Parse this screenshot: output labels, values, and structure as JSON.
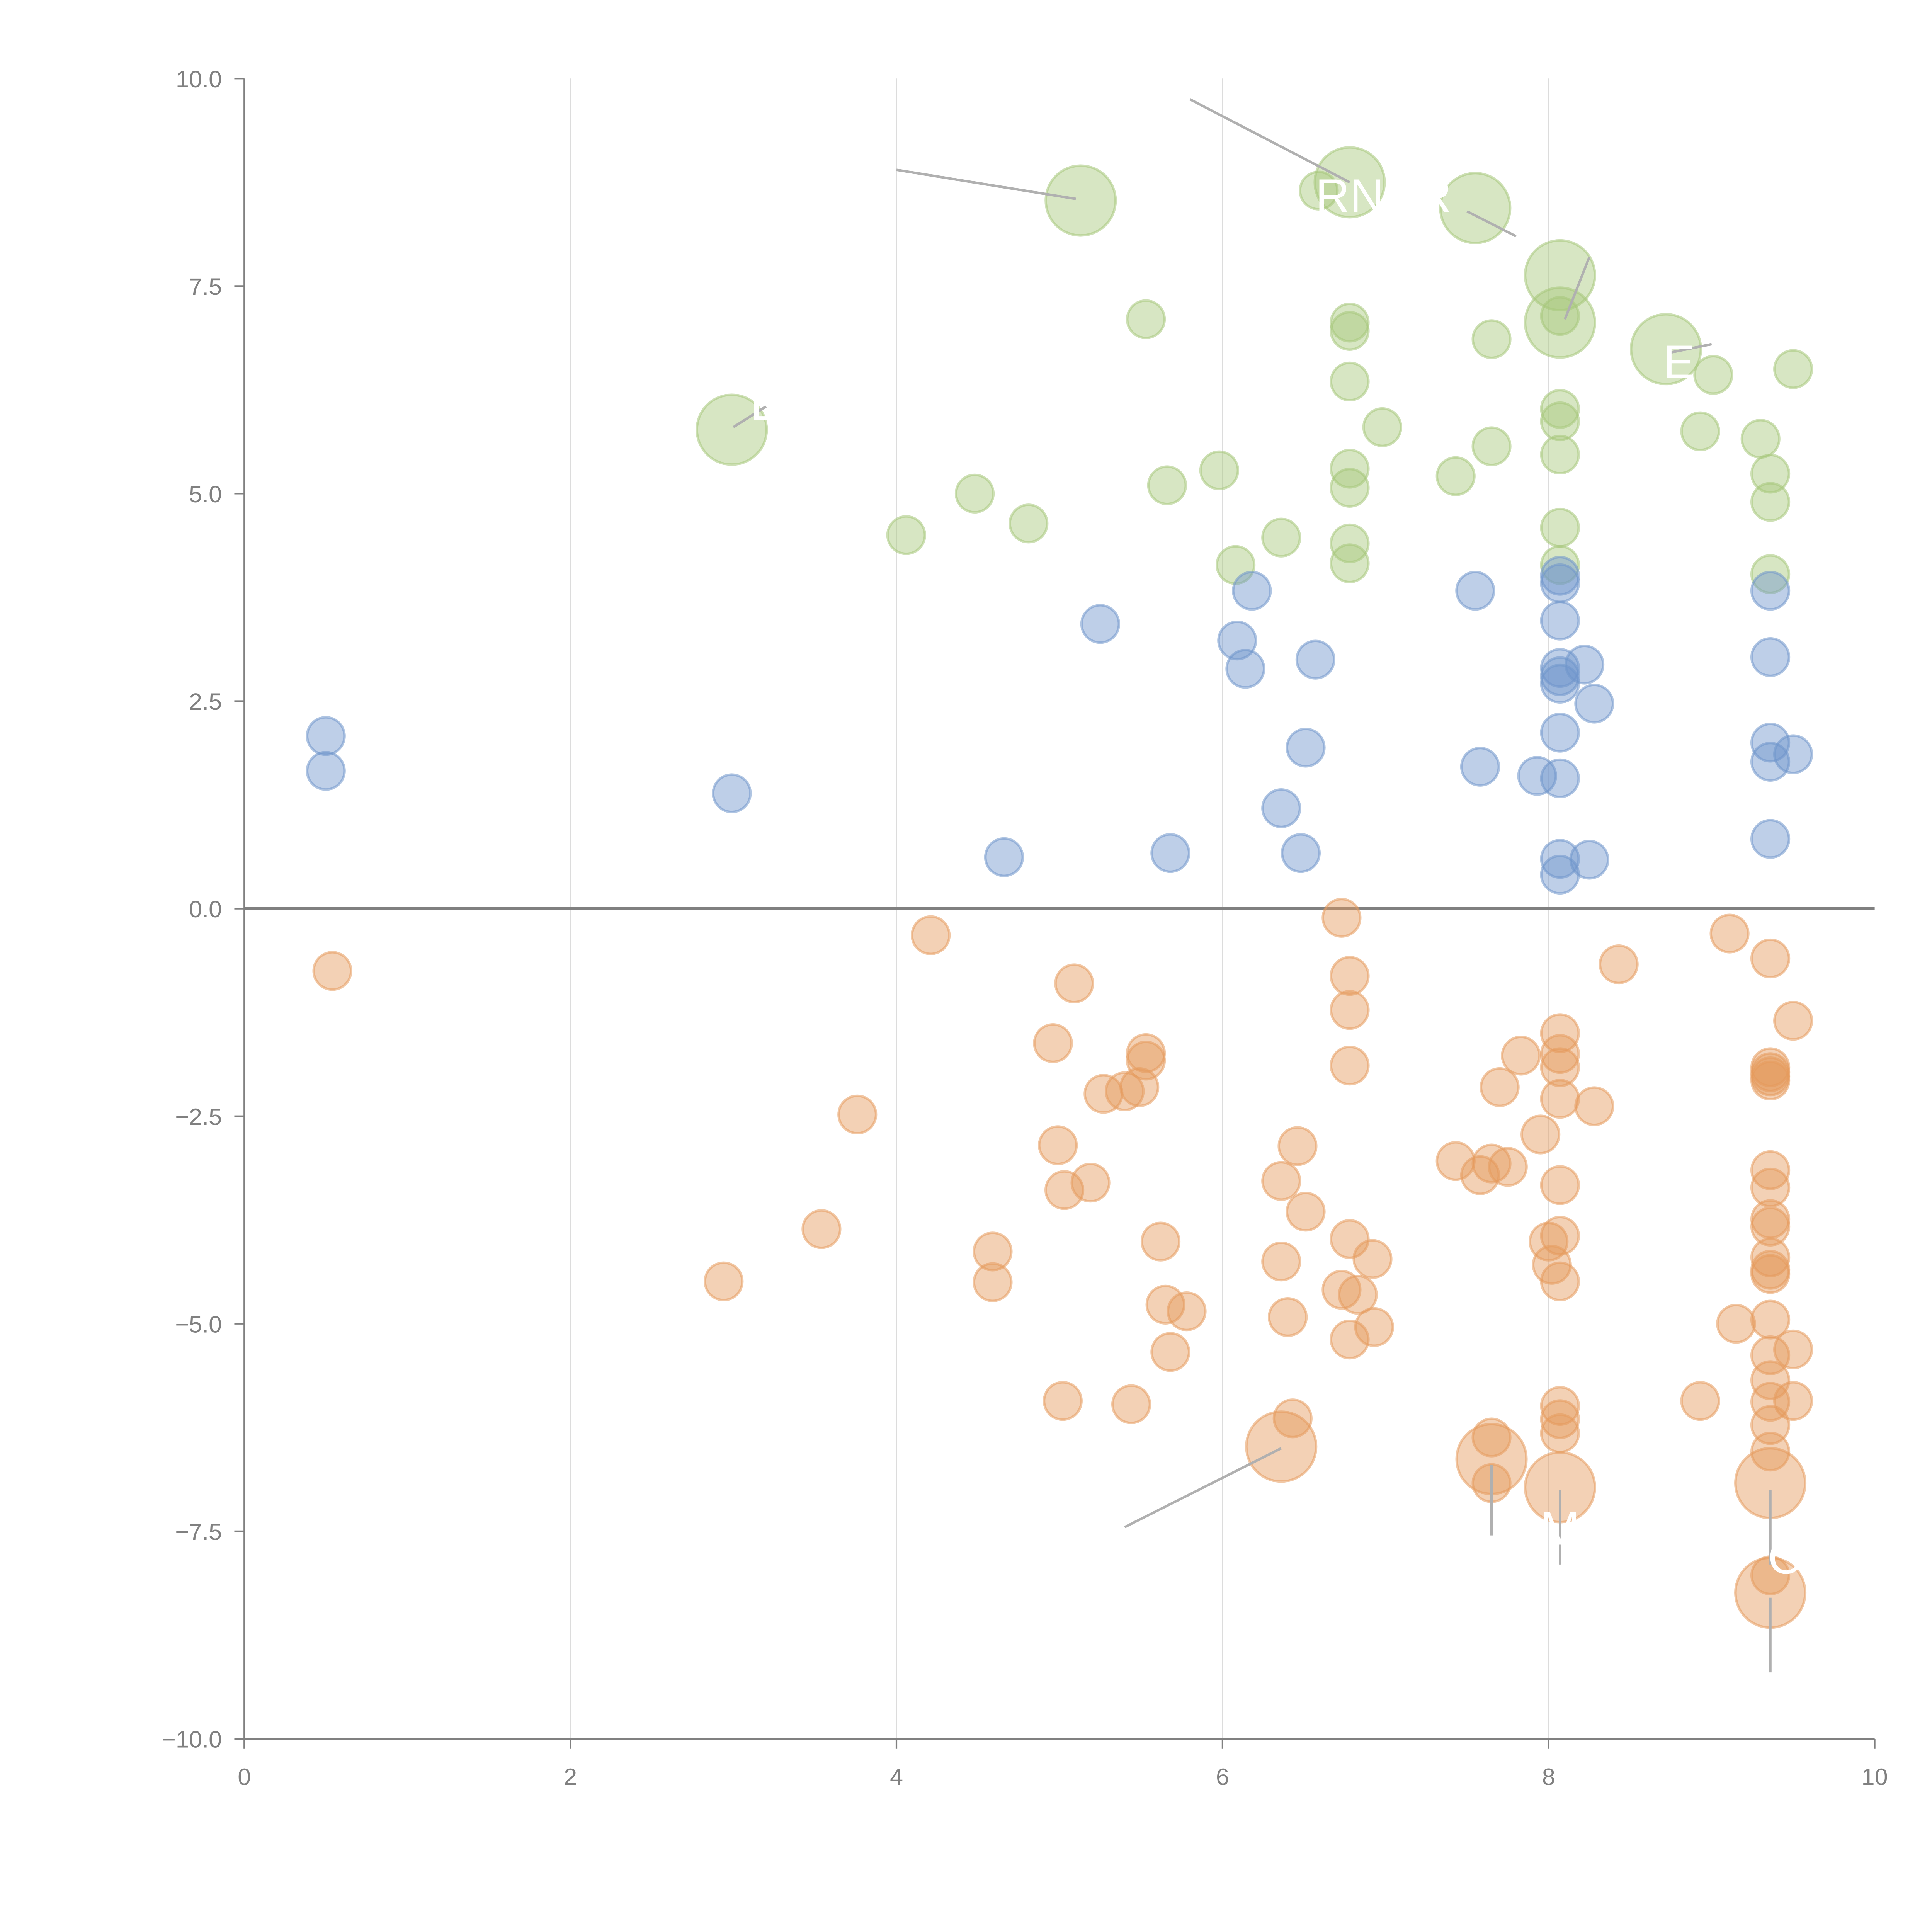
{
  "chart_data": {
    "type": "scatter",
    "title": "",
    "xlabel": "",
    "ylabel": "",
    "xlim": [
      0,
      10
    ],
    "ylim": [
      -10,
      10
    ],
    "grid": "vertical-lines",
    "x_ticks": [
      "0",
      "2",
      "4",
      "6",
      "8",
      "10"
    ],
    "y_ticks": [
      "10.0",
      "7.5",
      "5.0",
      "2.5",
      "0.0",
      "−2.5",
      "−5.0",
      "−7.5",
      "−10.0"
    ],
    "x_tick_values": [
      0,
      2,
      4,
      6,
      8,
      10
    ],
    "y_tick_values": [
      10,
      7.5,
      5,
      2.5,
      0,
      -2.5,
      -5,
      -7.5,
      -10
    ],
    "zero_line": 0,
    "series": [
      {
        "name": "green",
        "color": "#a6c77a",
        "points": [
          {
            "x": 5.13,
            "y": 8.53,
            "size": "large"
          },
          {
            "x": 2.99,
            "y": 5.77,
            "size": "large"
          },
          {
            "x": 6.78,
            "y": 8.75,
            "size": "large"
          },
          {
            "x": 7.55,
            "y": 8.44,
            "size": "large"
          },
          {
            "x": 8.07,
            "y": 7.63,
            "size": "large"
          },
          {
            "x": 8.07,
            "y": 7.06,
            "size": "large"
          },
          {
            "x": 8.72,
            "y": 6.74,
            "size": "large"
          },
          {
            "x": 6.59,
            "y": 8.65
          },
          {
            "x": 5.53,
            "y": 7.1
          },
          {
            "x": 6.78,
            "y": 7.06
          },
          {
            "x": 6.78,
            "y": 6.96
          },
          {
            "x": 7.65,
            "y": 6.86
          },
          {
            "x": 8.07,
            "y": 7.14
          },
          {
            "x": 6.78,
            "y": 6.35
          },
          {
            "x": 6.98,
            "y": 5.8
          },
          {
            "x": 7.65,
            "y": 5.57
          },
          {
            "x": 7.43,
            "y": 5.21
          },
          {
            "x": 8.07,
            "y": 6.02
          },
          {
            "x": 8.07,
            "y": 5.87
          },
          {
            "x": 8.07,
            "y": 5.47
          },
          {
            "x": 8.93,
            "y": 5.75
          },
          {
            "x": 9.01,
            "y": 6.43
          },
          {
            "x": 9.5,
            "y": 6.5
          },
          {
            "x": 9.3,
            "y": 5.66
          },
          {
            "x": 9.36,
            "y": 5.24
          },
          {
            "x": 9.36,
            "y": 4.9
          },
          {
            "x": 9.36,
            "y": 4.03
          },
          {
            "x": 6.78,
            "y": 5.3
          },
          {
            "x": 6.78,
            "y": 5.07
          },
          {
            "x": 5.98,
            "y": 5.28
          },
          {
            "x": 5.66,
            "y": 5.1
          },
          {
            "x": 4.48,
            "y": 5.0
          },
          {
            "x": 4.81,
            "y": 4.64
          },
          {
            "x": 4.06,
            "y": 4.5
          },
          {
            "x": 6.36,
            "y": 4.47
          },
          {
            "x": 6.78,
            "y": 4.4
          },
          {
            "x": 6.78,
            "y": 4.16
          },
          {
            "x": 6.08,
            "y": 4.14
          },
          {
            "x": 8.07,
            "y": 4.59
          },
          {
            "x": 8.07,
            "y": 4.14
          }
        ]
      },
      {
        "name": "blue",
        "color": "#6f95cb",
        "points": [
          {
            "x": 0.5,
            "y": 2.08
          },
          {
            "x": 0.5,
            "y": 1.66
          },
          {
            "x": 2.99,
            "y": 1.39
          },
          {
            "x": 4.66,
            "y": 0.62
          },
          {
            "x": 5.25,
            "y": 3.43
          },
          {
            "x": 5.68,
            "y": 0.67
          },
          {
            "x": 6.18,
            "y": 3.83
          },
          {
            "x": 6.09,
            "y": 3.23
          },
          {
            "x": 6.14,
            "y": 2.89
          },
          {
            "x": 6.57,
            "y": 3.0
          },
          {
            "x": 6.51,
            "y": 1.94
          },
          {
            "x": 6.36,
            "y": 1.21
          },
          {
            "x": 6.48,
            "y": 0.67
          },
          {
            "x": 7.55,
            "y": 3.83
          },
          {
            "x": 7.58,
            "y": 1.71
          },
          {
            "x": 7.93,
            "y": 1.6
          },
          {
            "x": 8.07,
            "y": 4.01
          },
          {
            "x": 8.07,
            "y": 3.92
          },
          {
            "x": 8.07,
            "y": 3.47
          },
          {
            "x": 8.07,
            "y": 2.9
          },
          {
            "x": 8.07,
            "y": 2.8
          },
          {
            "x": 8.07,
            "y": 2.71
          },
          {
            "x": 8.07,
            "y": 2.12
          },
          {
            "x": 8.07,
            "y": 1.57
          },
          {
            "x": 8.07,
            "y": 0.6
          },
          {
            "x": 8.07,
            "y": 0.41
          },
          {
            "x": 8.22,
            "y": 2.94
          },
          {
            "x": 8.28,
            "y": 2.47
          },
          {
            "x": 8.25,
            "y": 0.59
          },
          {
            "x": 9.36,
            "y": 3.83
          },
          {
            "x": 9.36,
            "y": 3.03
          },
          {
            "x": 9.36,
            "y": 2.0
          },
          {
            "x": 9.36,
            "y": 1.77
          },
          {
            "x": 9.5,
            "y": 1.86
          },
          {
            "x": 9.36,
            "y": 0.84
          }
        ]
      },
      {
        "name": "orange",
        "color": "#e59a5c",
        "points": [
          {
            "x": 6.36,
            "y": -6.48,
            "size": "large"
          },
          {
            "x": 7.65,
            "y": -6.63,
            "size": "large"
          },
          {
            "x": 8.07,
            "y": -6.97,
            "size": "large"
          },
          {
            "x": 9.36,
            "y": -6.92,
            "size": "large"
          },
          {
            "x": 9.36,
            "y": -8.24,
            "size": "large"
          },
          {
            "x": 0.54,
            "y": -0.75
          },
          {
            "x": 4.21,
            "y": -0.32
          },
          {
            "x": 6.73,
            "y": -0.11
          },
          {
            "x": 6.78,
            "y": -0.81
          },
          {
            "x": 6.78,
            "y": -1.22
          },
          {
            "x": 6.78,
            "y": -1.89
          },
          {
            "x": 5.09,
            "y": -0.9
          },
          {
            "x": 4.96,
            "y": -1.62
          },
          {
            "x": 5.53,
            "y": -1.74
          },
          {
            "x": 5.53,
            "y": -1.83
          },
          {
            "x": 5.27,
            "y": -2.23
          },
          {
            "x": 5.4,
            "y": -2.2
          },
          {
            "x": 5.49,
            "y": -2.15
          },
          {
            "x": 3.76,
            "y": -2.48
          },
          {
            "x": 4.99,
            "y": -2.85
          },
          {
            "x": 5.03,
            "y": -3.39
          },
          {
            "x": 5.19,
            "y": -3.3
          },
          {
            "x": 3.54,
            "y": -3.86
          },
          {
            "x": 2.94,
            "y": -4.49
          },
          {
            "x": 4.59,
            "y": -4.13
          },
          {
            "x": 4.59,
            "y": -4.5
          },
          {
            "x": 5.62,
            "y": -4.01
          },
          {
            "x": 5.65,
            "y": -4.77
          },
          {
            "x": 5.78,
            "y": -4.85
          },
          {
            "x": 5.68,
            "y": -5.34
          },
          {
            "x": 5.02,
            "y": -5.93
          },
          {
            "x": 5.44,
            "y": -5.97
          },
          {
            "x": 6.43,
            "y": -6.14
          },
          {
            "x": 6.46,
            "y": -2.86
          },
          {
            "x": 6.36,
            "y": -3.28
          },
          {
            "x": 6.51,
            "y": -3.65
          },
          {
            "x": 6.36,
            "y": -4.25
          },
          {
            "x": 6.4,
            "y": -4.92
          },
          {
            "x": 6.78,
            "y": -3.98
          },
          {
            "x": 6.92,
            "y": -4.22
          },
          {
            "x": 6.73,
            "y": -4.59
          },
          {
            "x": 6.83,
            "y": -4.65
          },
          {
            "x": 6.78,
            "y": -5.19
          },
          {
            "x": 6.93,
            "y": -5.04
          },
          {
            "x": 7.43,
            "y": -3.04
          },
          {
            "x": 7.58,
            "y": -3.21
          },
          {
            "x": 7.65,
            "y": -3.07
          },
          {
            "x": 7.75,
            "y": -3.11
          },
          {
            "x": 7.7,
            "y": -2.15
          },
          {
            "x": 7.83,
            "y": -1.77
          },
          {
            "x": 7.95,
            "y": -2.72
          },
          {
            "x": 8.07,
            "y": -1.5
          },
          {
            "x": 8.07,
            "y": -1.75
          },
          {
            "x": 8.07,
            "y": -1.91
          },
          {
            "x": 8.07,
            "y": -2.29
          },
          {
            "x": 8.28,
            "y": -2.38
          },
          {
            "x": 8.07,
            "y": -3.33
          },
          {
            "x": 8.07,
            "y": -3.94
          },
          {
            "x": 8.0,
            "y": -4.01
          },
          {
            "x": 8.02,
            "y": -4.29
          },
          {
            "x": 8.07,
            "y": -4.49
          },
          {
            "x": 8.07,
            "y": -5.99
          },
          {
            "x": 8.07,
            "y": -6.15
          },
          {
            "x": 8.07,
            "y": -6.32
          },
          {
            "x": 7.65,
            "y": -6.37
          },
          {
            "x": 7.65,
            "y": -6.92
          },
          {
            "x": 8.43,
            "y": -0.67
          },
          {
            "x": 9.11,
            "y": -0.3
          },
          {
            "x": 9.36,
            "y": -0.6
          },
          {
            "x": 9.5,
            "y": -1.35
          },
          {
            "x": 9.36,
            "y": -1.91
          },
          {
            "x": 9.36,
            "y": -1.97
          },
          {
            "x": 9.36,
            "y": -2.02
          },
          {
            "x": 9.36,
            "y": -2.07
          },
          {
            "x": 9.36,
            "y": -3.15
          },
          {
            "x": 9.36,
            "y": -3.36
          },
          {
            "x": 9.36,
            "y": -3.74
          },
          {
            "x": 9.36,
            "y": -3.83
          },
          {
            "x": 9.36,
            "y": -4.2
          },
          {
            "x": 9.36,
            "y": -4.35
          },
          {
            "x": 9.36,
            "y": -4.4
          },
          {
            "x": 9.36,
            "y": -4.95
          },
          {
            "x": 9.15,
            "y": -5.0
          },
          {
            "x": 9.36,
            "y": -5.38
          },
          {
            "x": 9.5,
            "y": -5.31
          },
          {
            "x": 9.36,
            "y": -5.68
          },
          {
            "x": 9.36,
            "y": -5.94
          },
          {
            "x": 8.93,
            "y": -5.93
          },
          {
            "x": 9.5,
            "y": -5.93
          },
          {
            "x": 9.36,
            "y": -6.22
          },
          {
            "x": 9.36,
            "y": -6.54
          },
          {
            "x": 9.36,
            "y": -8.03
          }
        ]
      }
    ],
    "annotations": [
      {
        "text": "RN",
        "x": 6.78,
        "y": 8.6,
        "leader_from": [
          5.8,
          9.75
        ],
        "leader_to": [
          6.78,
          8.75
        ]
      },
      {
        "text": "R",
        "x": 7.3,
        "y": 8.6,
        "leader_from": [
          7.5,
          8.4
        ],
        "leader_to": [
          7.8,
          8.1
        ]
      },
      {
        "text": "E",
        "x": 3.2,
        "y": 6.1,
        "leader_from": [
          3.0,
          5.8
        ],
        "leader_to": [
          3.2,
          6.05
        ]
      },
      {
        "text": "E",
        "x": 8.8,
        "y": 6.6,
        "leader_from": [
          8.75,
          6.7
        ],
        "leader_to": [
          9.0,
          6.8
        ]
      },
      {
        "text": "",
        "x": 5.0,
        "y": 8.6,
        "leader_from": [
          4.0,
          8.9
        ],
        "leader_to": [
          5.1,
          8.55
        ]
      },
      {
        "text": "",
        "x": 8.1,
        "y": 7.5,
        "leader_from": [
          8.1,
          7.1
        ],
        "leader_to": [
          8.25,
          7.85
        ]
      },
      {
        "text": "",
        "x": 5.4,
        "y": -7.4,
        "leader_from": [
          5.4,
          -7.45
        ],
        "leader_to": [
          6.36,
          -6.5
        ]
      },
      {
        "text": "",
        "x": 7.65,
        "y": -7.5,
        "leader_from": [
          7.65,
          -6.7
        ],
        "leader_to": [
          7.65,
          -7.55
        ]
      },
      {
        "text": "M",
        "x": 8.07,
        "y": -7.45,
        "leader_from": [
          8.07,
          -7.0
        ],
        "leader_to": [
          8.07,
          -7.9
        ]
      },
      {
        "text": "C",
        "x": 9.45,
        "y": -7.8,
        "leader_from": [
          9.36,
          -7.0
        ],
        "leader_to": [
          9.36,
          -7.9
        ]
      },
      {
        "text": "",
        "x": 9.36,
        "y": -9.0,
        "leader_from": [
          9.36,
          -8.3
        ],
        "leader_to": [
          9.36,
          -9.2
        ]
      }
    ]
  }
}
